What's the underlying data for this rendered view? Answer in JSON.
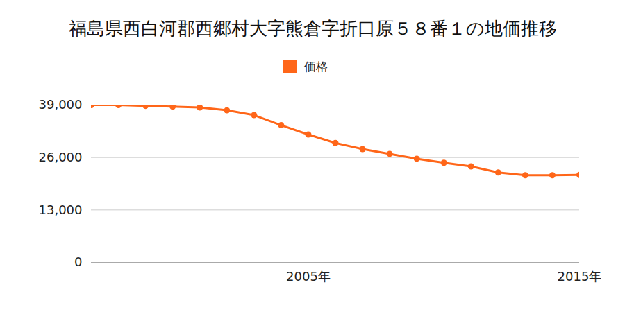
{
  "chart_data": {
    "type": "line",
    "title": "福島県西白河郡西郷村大字熊倉字折口原５８番１の地価推移",
    "x": [
      1997,
      1998,
      1999,
      2000,
      2001,
      2002,
      2003,
      2004,
      2005,
      2006,
      2007,
      2008,
      2009,
      2010,
      2011,
      2012,
      2013,
      2014,
      2015
    ],
    "series": [
      {
        "name": "価格",
        "color": "#ff6619",
        "marker": "circle",
        "values": [
          39000,
          39000,
          38800,
          38600,
          38400,
          37700,
          36500,
          34000,
          31700,
          29600,
          28100,
          26900,
          25700,
          24700,
          23800,
          22300,
          21600,
          21600,
          21700
        ]
      }
    ],
    "xlim": [
      1997,
      2015
    ],
    "xticks": [
      {
        "value": 2005,
        "label": "2005年"
      },
      {
        "value": 2015,
        "label": "2015年"
      }
    ],
    "ylim": [
      0,
      39000
    ],
    "yticks": [
      0,
      {
        "value": 13000,
        "label": "13,000"
      },
      {
        "value": 26000,
        "label": "26,000"
      },
      {
        "value": 39000,
        "label": "39,000"
      }
    ],
    "grid": true,
    "legend": "top"
  }
}
